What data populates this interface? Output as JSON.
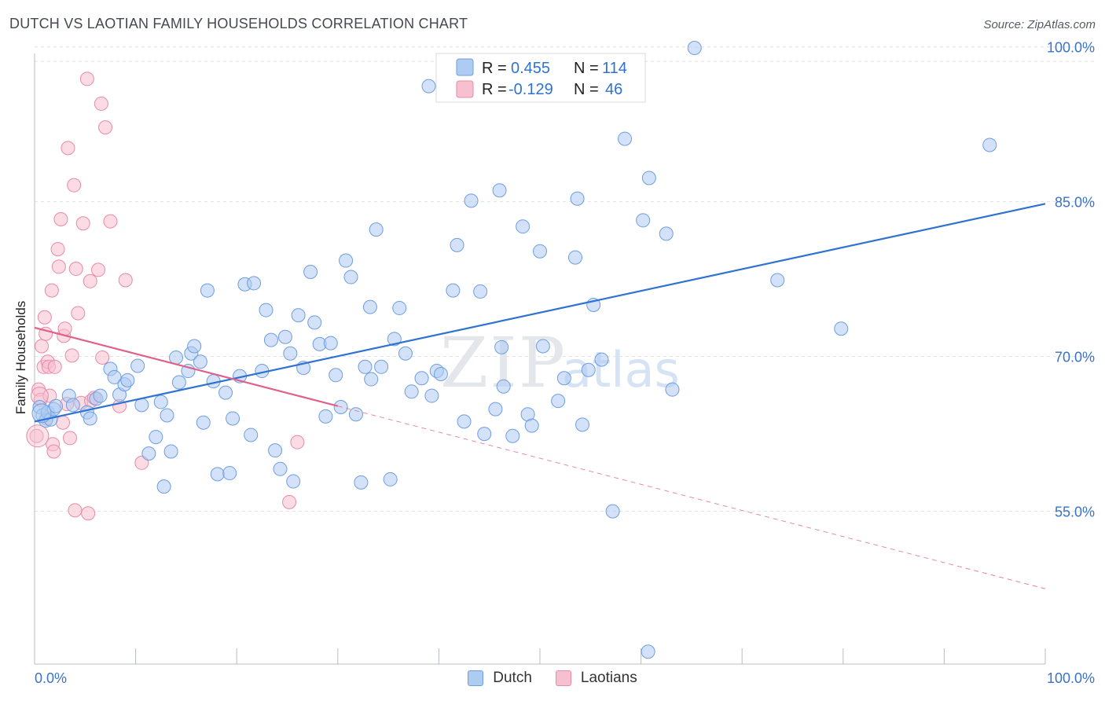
{
  "title": "DUTCH VS LAOTIAN FAMILY HOUSEHOLDS CORRELATION CHART",
  "source": "Source: ZipAtlas.com",
  "watermark": {
    "zip": "ZIP",
    "atlas": "atlas"
  },
  "legend_top": {
    "series": [
      {
        "r_label": "R =",
        "r_value": "0.455",
        "n_label": "N =",
        "n_value": "114"
      },
      {
        "r_label": "R =",
        "r_value": "-0.129",
        "n_label": "N =",
        "n_value": "46"
      }
    ]
  },
  "bottom_legend": {
    "dutch": "Dutch",
    "laotians": "Laotians"
  },
  "colors": {
    "dutch_fill": "#aecbf2",
    "dutch_stroke": "#6e9ee0",
    "dutch_line": "#2f72d0",
    "lao_fill": "#f7c0d0",
    "lao_stroke": "#e88aa8",
    "lao_line": "#e0608c",
    "grid": "#dde1e6",
    "axis_text": "#3a72c8"
  },
  "chart_data": {
    "type": "scatter",
    "title": "DUTCH VS LAOTIAN FAMILY HOUSEHOLDS CORRELATION CHART",
    "xlabel": "",
    "ylabel": "Family Households",
    "xlim": [
      0,
      100
    ],
    "ylim": [
      40.2,
      101.5
    ],
    "x_tick_labels": [
      {
        "value": 0,
        "label": "0.0%"
      },
      {
        "value": 100,
        "label": "100.0%"
      }
    ],
    "y_tick_labels": [
      {
        "value": 100,
        "label": "100.0%"
      },
      {
        "value": 85,
        "label": "85.0%"
      },
      {
        "value": 70,
        "label": "70.0%"
      },
      {
        "value": 55,
        "label": "55.0%"
      }
    ],
    "series": [
      {
        "name": "Dutch",
        "r": 0.455,
        "n": 114,
        "trend": {
          "x0": 0,
          "y0": 63.7,
          "x1": 100,
          "y1": 84.8
        },
        "points": [
          [
            0.5,
            65.1
          ],
          [
            0.8,
            64.3
          ],
          [
            1.1,
            63.8
          ],
          [
            1.3,
            64.6
          ],
          [
            1.6,
            63.9
          ],
          [
            1.9,
            64.9
          ],
          [
            2.1,
            65.2
          ],
          [
            3.4,
            66.2
          ],
          [
            3.8,
            65.3
          ],
          [
            5.2,
            64.6
          ],
          [
            5.5,
            64.0
          ],
          [
            6.1,
            65.9
          ],
          [
            6.5,
            66.2
          ],
          [
            7.5,
            68.8
          ],
          [
            7.9,
            68.0
          ],
          [
            8.4,
            66.3
          ],
          [
            8.9,
            67.3
          ],
          [
            9.2,
            67.7
          ],
          [
            10.2,
            69.1
          ],
          [
            10.6,
            65.3
          ],
          [
            11.3,
            60.6
          ],
          [
            12.0,
            62.2
          ],
          [
            12.5,
            65.6
          ],
          [
            12.8,
            57.4
          ],
          [
            13.1,
            64.3
          ],
          [
            13.5,
            60.8
          ],
          [
            14.0,
            69.9
          ],
          [
            14.3,
            67.5
          ],
          [
            15.2,
            68.6
          ],
          [
            15.5,
            70.3
          ],
          [
            15.8,
            71.0
          ],
          [
            16.4,
            69.5
          ],
          [
            16.7,
            63.6
          ],
          [
            17.1,
            76.4
          ],
          [
            17.7,
            67.6
          ],
          [
            18.1,
            58.6
          ],
          [
            18.9,
            66.5
          ],
          [
            19.3,
            58.7
          ],
          [
            19.6,
            64.0
          ],
          [
            20.3,
            68.1
          ],
          [
            20.8,
            77.0
          ],
          [
            21.4,
            62.4
          ],
          [
            21.7,
            77.1
          ],
          [
            22.5,
            68.6
          ],
          [
            22.9,
            74.5
          ],
          [
            23.4,
            71.6
          ],
          [
            23.8,
            60.9
          ],
          [
            24.3,
            59.1
          ],
          [
            24.8,
            71.9
          ],
          [
            25.3,
            70.3
          ],
          [
            25.6,
            57.9
          ],
          [
            26.1,
            74.0
          ],
          [
            26.6,
            68.9
          ],
          [
            27.3,
            78.2
          ],
          [
            27.7,
            73.3
          ],
          [
            28.2,
            71.2
          ],
          [
            28.8,
            64.2
          ],
          [
            29.3,
            71.3
          ],
          [
            29.8,
            68.2
          ],
          [
            30.3,
            65.1
          ],
          [
            30.8,
            79.3
          ],
          [
            31.3,
            77.7
          ],
          [
            31.8,
            64.4
          ],
          [
            32.3,
            57.8
          ],
          [
            32.7,
            69.0
          ],
          [
            33.2,
            74.8
          ],
          [
            33.8,
            82.3
          ],
          [
            34.3,
            69.0
          ],
          [
            35.2,
            58.1
          ],
          [
            35.6,
            71.7
          ],
          [
            36.1,
            74.7
          ],
          [
            36.7,
            70.3
          ],
          [
            37.3,
            66.6
          ],
          [
            38.3,
            67.9
          ],
          [
            39.0,
            96.2
          ],
          [
            39.3,
            66.2
          ],
          [
            39.8,
            68.6
          ],
          [
            40.2,
            68.3
          ],
          [
            41.4,
            76.4
          ],
          [
            41.8,
            80.8
          ],
          [
            42.5,
            63.7
          ],
          [
            43.2,
            85.1
          ],
          [
            44.1,
            76.3
          ],
          [
            44.5,
            62.5
          ],
          [
            45.6,
            64.9
          ],
          [
            46.0,
            86.1
          ],
          [
            46.2,
            70.9
          ],
          [
            46.4,
            67.1
          ],
          [
            47.3,
            62.3
          ],
          [
            48.3,
            82.6
          ],
          [
            48.8,
            64.4
          ],
          [
            49.2,
            63.3
          ],
          [
            50.0,
            80.2
          ],
          [
            50.3,
            71.0
          ],
          [
            51.8,
            65.7
          ],
          [
            52.4,
            67.9
          ],
          [
            53.5,
            79.6
          ],
          [
            53.7,
            85.3
          ],
          [
            54.2,
            63.4
          ],
          [
            54.8,
            68.7
          ],
          [
            55.3,
            75.0
          ],
          [
            56.1,
            69.7
          ],
          [
            57.2,
            55.0
          ],
          [
            58.4,
            91.1
          ],
          [
            60.2,
            83.2
          ],
          [
            60.8,
            87.3
          ],
          [
            60.7,
            41.4
          ],
          [
            62.5,
            81.9
          ],
          [
            63.1,
            66.8
          ],
          [
            65.3,
            99.9
          ],
          [
            73.5,
            77.4
          ],
          [
            79.8,
            72.7
          ],
          [
            94.5,
            90.5
          ],
          [
            33.3,
            67.8
          ]
        ]
      },
      {
        "name": "Laotians",
        "r": -0.129,
        "n": 46,
        "trend": {
          "x0": 0,
          "y0": 72.8,
          "x1": 30,
          "y1": 65.2,
          "dash_to_x": 100,
          "dash_to_y": 47.5
        },
        "points": [
          [
            0.2,
            62.3
          ],
          [
            0.4,
            66.8
          ],
          [
            0.6,
            65.8
          ],
          [
            0.7,
            71.0
          ],
          [
            0.9,
            69.0
          ],
          [
            1.0,
            73.8
          ],
          [
            1.1,
            72.2
          ],
          [
            1.3,
            69.5
          ],
          [
            1.4,
            69.0
          ],
          [
            1.5,
            66.2
          ],
          [
            1.7,
            76.4
          ],
          [
            1.8,
            61.5
          ],
          [
            1.9,
            60.8
          ],
          [
            2.0,
            69.0
          ],
          [
            2.3,
            80.4
          ],
          [
            2.4,
            78.7
          ],
          [
            2.6,
            83.3
          ],
          [
            2.8,
            63.6
          ],
          [
            2.9,
            72.0
          ],
          [
            3.0,
            72.7
          ],
          [
            3.2,
            65.4
          ],
          [
            3.3,
            90.2
          ],
          [
            3.5,
            62.1
          ],
          [
            3.7,
            70.1
          ],
          [
            3.9,
            86.6
          ],
          [
            4.0,
            55.1
          ],
          [
            4.1,
            78.5
          ],
          [
            4.3,
            74.2
          ],
          [
            4.6,
            65.5
          ],
          [
            4.8,
            82.9
          ],
          [
            5.2,
            96.9
          ],
          [
            5.3,
            54.8
          ],
          [
            5.5,
            77.3
          ],
          [
            5.6,
            65.7
          ],
          [
            5.9,
            66.0
          ],
          [
            6.3,
            78.4
          ],
          [
            6.6,
            94.5
          ],
          [
            6.7,
            69.9
          ],
          [
            7.0,
            92.2
          ],
          [
            7.5,
            83.1
          ],
          [
            8.4,
            65.2
          ],
          [
            9.0,
            77.4
          ],
          [
            10.6,
            59.7
          ],
          [
            25.2,
            55.9
          ],
          [
            26.0,
            61.7
          ],
          [
            1.2,
            64.0
          ]
        ]
      }
    ]
  }
}
